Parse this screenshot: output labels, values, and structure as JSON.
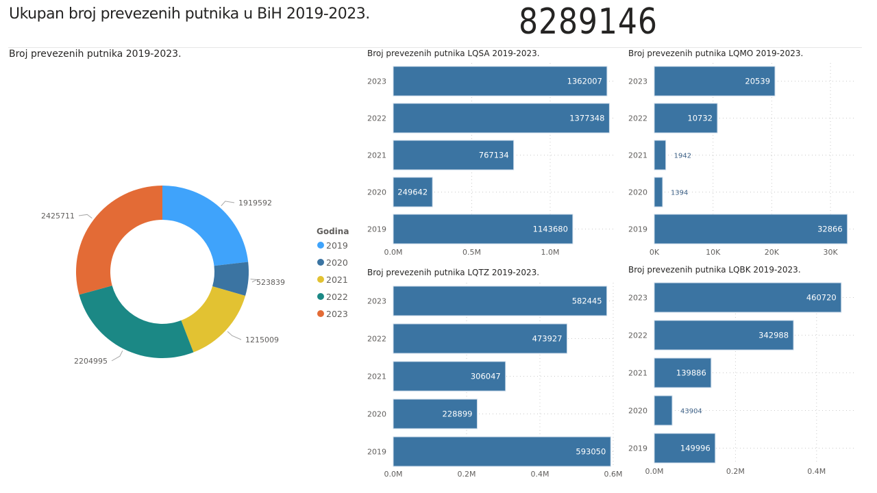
{
  "header": {
    "title": "Ukupan broj prevezenih putnika u BiH 2019-2023.",
    "kpi_value": "8289146"
  },
  "colors": {
    "bar": "#3b74a2",
    "grid": "#c8c8c8",
    "axis_text": "#605e5c",
    "label_inside": "#ffffff",
    "label_outside": "#3b5f85"
  },
  "chart_data": [
    {
      "id": "donut",
      "type": "pie",
      "title": "Broj prevezenih putnika 2019-2023.",
      "legend_title": "Godina",
      "legend_position": "right",
      "categories": [
        "2019",
        "2020",
        "2021",
        "2022",
        "2023"
      ],
      "values": [
        1919592,
        523839,
        1215009,
        2204995,
        2425711
      ],
      "labels": [
        "1919592",
        "523839",
        "1215009",
        "2204995",
        "2425711"
      ],
      "colors": [
        "#3fa3fb",
        "#3b74a2",
        "#e2c232",
        "#1b8885",
        "#e36b36"
      ]
    },
    {
      "id": "lqsa",
      "type": "bar",
      "orientation": "horizontal",
      "title": "Broj prevezenih putnika LQSA 2019-2023.",
      "categories": [
        "2023",
        "2022",
        "2021",
        "2020",
        "2019"
      ],
      "values": [
        1362007,
        1377348,
        767134,
        249642,
        1143680
      ],
      "xlim": [
        0,
        1400000
      ],
      "xticks": [
        0,
        500000,
        1000000
      ],
      "xtick_labels": [
        "0.0M",
        "0.5M",
        "1.0M"
      ],
      "grid": true
    },
    {
      "id": "lqmo",
      "type": "bar",
      "orientation": "horizontal",
      "title": "Broj prevezenih putnika LQMO 2019-2023.",
      "categories": [
        "2023",
        "2022",
        "2021",
        "2020",
        "2019"
      ],
      "values": [
        20539,
        10732,
        1942,
        1394,
        32866
      ],
      "xlim": [
        0,
        34000
      ],
      "xticks": [
        0,
        10000,
        20000,
        30000
      ],
      "xtick_labels": [
        "0K",
        "10K",
        "20K",
        "30K"
      ],
      "grid": true
    },
    {
      "id": "lqtz",
      "type": "bar",
      "orientation": "horizontal",
      "title": "Broj prevezenih putnika LQTZ 2019-2023.",
      "categories": [
        "2023",
        "2022",
        "2021",
        "2020",
        "2019"
      ],
      "values": [
        582445,
        473927,
        306047,
        228899,
        593050
      ],
      "xlim": [
        0,
        600000
      ],
      "xticks": [
        0,
        200000,
        400000,
        600000
      ],
      "xtick_labels": [
        "0.0M",
        "0.2M",
        "0.4M",
        "0.6M"
      ],
      "grid": true
    },
    {
      "id": "lqbk",
      "type": "bar",
      "orientation": "horizontal",
      "title": "Broj prevezenih putnika LQBK 2019-2023.",
      "categories": [
        "2023",
        "2022",
        "2021",
        "2020",
        "2019"
      ],
      "values": [
        460720,
        342988,
        139886,
        43904,
        149996
      ],
      "xlim": [
        0,
        490000
      ],
      "xticks": [
        0,
        200000,
        400000
      ],
      "xtick_labels": [
        "0.0M",
        "0.2M",
        "0.4M"
      ],
      "grid": true
    }
  ]
}
